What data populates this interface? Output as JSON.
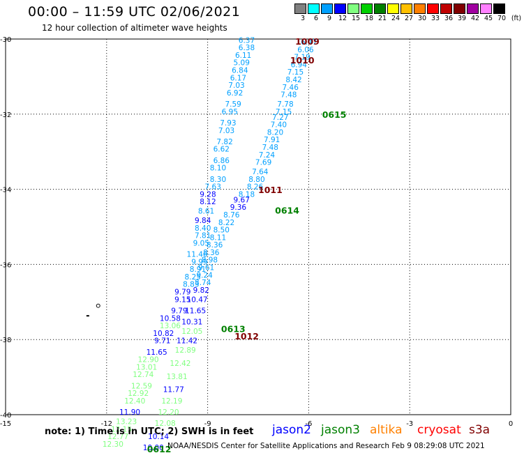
{
  "header": {
    "title": "00:00 – 11:59 UTC 02/06/2021",
    "subtitle": "12 hour collection of altimeter wave heights"
  },
  "legend": {
    "ticks": [
      "3",
      "6",
      "9",
      "12",
      "15",
      "18",
      "21",
      "24",
      "27",
      "30",
      "33",
      "36",
      "39",
      "42",
      "45",
      "70"
    ],
    "unit": "(ft)",
    "colors": [
      "#808080",
      "#00ffff",
      "#00a0ff",
      "#0000ff",
      "#80ff80",
      "#00d000",
      "#008000",
      "#ffff00",
      "#ffc000",
      "#ff8000",
      "#ff0000",
      "#c00000",
      "#800000",
      "#a000a0",
      "#ff80ff",
      "#000000"
    ]
  },
  "footer": {
    "note": "note: 1) Time is in UTC; 2) SWH is in feet",
    "satellites": [
      {
        "name": "jason2",
        "color": "#0000ff"
      },
      {
        "name": "jason3",
        "color": "#008000"
      },
      {
        "name": "altika",
        "color": "#ff8000"
      },
      {
        "name": "cryosat",
        "color": "#ff0000"
      },
      {
        "name": "s3a",
        "color": "#800000"
      }
    ],
    "credit": "NOAA/NESDIS Center for Satellite Applications and Research   Feb  9 08:29:08 UTC 2021"
  },
  "chart_data": {
    "type": "map-annotated-track",
    "xlim": [
      -15,
      0
    ],
    "ylim": [
      -40,
      -30
    ],
    "x_ticks": [
      -15,
      -12,
      -9,
      -6,
      -3,
      0
    ],
    "y_ticks": [
      -30,
      -32,
      -34,
      -36,
      -38,
      -40
    ],
    "grid": true,
    "tracks": [
      {
        "track": "A",
        "labels": [
          {
            "lon": -7.6,
            "lat": -30.1,
            "text": "6.37",
            "color": "#00a0ff"
          },
          {
            "lon": -7.6,
            "lat": -30.3,
            "text": "6.38",
            "color": "#00a0ff"
          },
          {
            "lon": -7.7,
            "lat": -30.5,
            "text": "6.11",
            "color": "#00a0ff"
          },
          {
            "lon": -7.75,
            "lat": -30.7,
            "text": "5.09",
            "color": "#00a0ff"
          },
          {
            "lon": -7.8,
            "lat": -30.9,
            "text": "6.84",
            "color": "#00a0ff"
          },
          {
            "lon": -7.85,
            "lat": -31.1,
            "text": "6.17",
            "color": "#00a0ff"
          },
          {
            "lon": -7.9,
            "lat": -31.3,
            "text": "7.03",
            "color": "#00a0ff"
          },
          {
            "lon": -7.95,
            "lat": -31.5,
            "text": "6.92",
            "color": "#00a0ff"
          },
          {
            "lon": -8.0,
            "lat": -31.8,
            "text": "7.59",
            "color": "#00a0ff"
          },
          {
            "lon": -8.1,
            "lat": -32.0,
            "text": "6.95",
            "color": "#00a0ff"
          },
          {
            "lon": -8.15,
            "lat": -32.3,
            "text": "7.93",
            "color": "#00a0ff"
          },
          {
            "lon": -8.2,
            "lat": -32.5,
            "text": "7.03",
            "color": "#00a0ff"
          },
          {
            "lon": -8.25,
            "lat": -32.8,
            "text": "7.82",
            "color": "#00a0ff"
          },
          {
            "lon": -8.35,
            "lat": -33.0,
            "text": "6.62",
            "color": "#00a0ff"
          },
          {
            "lon": -8.35,
            "lat": -33.3,
            "text": "6.86",
            "color": "#00a0ff"
          },
          {
            "lon": -8.45,
            "lat": -33.5,
            "text": "8.10",
            "color": "#00a0ff"
          },
          {
            "lon": -8.45,
            "lat": -33.8,
            "text": "8.30",
            "color": "#00a0ff"
          },
          {
            "lon": -8.6,
            "lat": -34.0,
            "text": "7.63",
            "color": "#00a0ff"
          },
          {
            "lon": -8.75,
            "lat": -34.2,
            "text": "9.28",
            "color": "#0000ff"
          },
          {
            "lon": -8.75,
            "lat": -34.4,
            "text": "8.12",
            "color": "#0000ff"
          },
          {
            "lon": -8.8,
            "lat": -34.65,
            "text": "8.61",
            "color": "#00a0ff"
          },
          {
            "lon": -8.9,
            "lat": -34.9,
            "text": "9.84",
            "color": "#0000ff"
          },
          {
            "lon": -8.9,
            "lat": -35.1,
            "text": "8.40",
            "color": "#00a0ff"
          },
          {
            "lon": -8.9,
            "lat": -35.3,
            "text": "7.81",
            "color": "#00a0ff"
          },
          {
            "lon": -8.95,
            "lat": -35.5,
            "text": "9.05",
            "color": "#00a0ff"
          },
          {
            "lon": -9.0,
            "lat": -35.8,
            "text": "11.46",
            "color": "#00a0ff"
          },
          {
            "lon": -9.0,
            "lat": -36.0,
            "text": "9.99",
            "color": "#00a0ff"
          },
          {
            "lon": -9.05,
            "lat": -36.2,
            "text": "8.91",
            "color": "#00a0ff"
          },
          {
            "lon": -9.2,
            "lat": -36.4,
            "text": "8.25",
            "color": "#00a0ff"
          },
          {
            "lon": -9.25,
            "lat": -36.6,
            "text": "8.83",
            "color": "#00a0ff"
          },
          {
            "lon": -9.5,
            "lat": -36.8,
            "text": "9.79",
            "color": "#0000ff"
          },
          {
            "lon": -9.5,
            "lat": -37.0,
            "text": "9.15",
            "color": "#0000ff"
          },
          {
            "lon": -9.6,
            "lat": -37.3,
            "text": "9.79",
            "color": "#0000ff"
          },
          {
            "lon": -9.8,
            "lat": -37.5,
            "text": "10.58",
            "color": "#0000ff"
          },
          {
            "lon": -9.8,
            "lat": -37.7,
            "text": "13.06",
            "color": "#80ff80"
          },
          {
            "lon": -10.0,
            "lat": -37.9,
            "text": "10.82",
            "color": "#0000ff"
          },
          {
            "lon": -10.1,
            "lat": -38.1,
            "text": "9.71",
            "color": "#0000ff"
          },
          {
            "lon": -10.2,
            "lat": -38.4,
            "text": "11.65",
            "color": "#0000ff"
          },
          {
            "lon": -10.45,
            "lat": -38.6,
            "text": "12.90",
            "color": "#80ff80"
          },
          {
            "lon": -10.5,
            "lat": -38.8,
            "text": "13.01",
            "color": "#80ff80"
          },
          {
            "lon": -10.6,
            "lat": -39.0,
            "text": "12.74",
            "color": "#80ff80"
          },
          {
            "lon": -10.65,
            "lat": -39.3,
            "text": "12.59",
            "color": "#80ff80"
          },
          {
            "lon": -10.75,
            "lat": -39.5,
            "text": "12.92",
            "color": "#80ff80"
          },
          {
            "lon": -10.85,
            "lat": -39.7,
            "text": "12.40",
            "color": "#80ff80"
          },
          {
            "lon": -11.0,
            "lat": -40.0,
            "text": "11.90",
            "color": "#0000ff"
          },
          {
            "lon": -11.1,
            "lat": -40.25,
            "text": "13.23",
            "color": "#80ff80"
          },
          {
            "lon": -11.25,
            "lat": -40.45,
            "text": "12.15",
            "color": "#80ff80"
          },
          {
            "lon": -11.35,
            "lat": -40.65,
            "text": "12.77",
            "color": "#80ff80"
          },
          {
            "lon": -11.5,
            "lat": -40.85,
            "text": "12.30",
            "color": "#80ff80"
          }
        ]
      },
      {
        "track": "B",
        "labels": [
          {
            "lon": -5.75,
            "lat": -30.15,
            "text": "6.47",
            "color": "#00a0ff"
          },
          {
            "lon": -5.85,
            "lat": -30.35,
            "text": "6.06",
            "color": "#00a0ff"
          },
          {
            "lon": -5.95,
            "lat": -30.55,
            "text": "7.19",
            "color": "#00a0ff"
          },
          {
            "lon": -6.05,
            "lat": -30.75,
            "text": "6.94",
            "color": "#00a0ff"
          },
          {
            "lon": -6.15,
            "lat": -30.95,
            "text": "7.15",
            "color": "#00a0ff"
          },
          {
            "lon": -6.2,
            "lat": -31.15,
            "text": "8.42",
            "color": "#00a0ff"
          },
          {
            "lon": -6.3,
            "lat": -31.35,
            "text": "7.46",
            "color": "#00a0ff"
          },
          {
            "lon": -6.35,
            "lat": -31.55,
            "text": "7.48",
            "color": "#00a0ff"
          },
          {
            "lon": -6.45,
            "lat": -31.8,
            "text": "7.78",
            "color": "#00a0ff"
          },
          {
            "lon": -6.5,
            "lat": -32.0,
            "text": "7.15",
            "color": "#00a0ff"
          },
          {
            "lon": -6.6,
            "lat": -32.15,
            "text": "7.27",
            "color": "#00a0ff"
          },
          {
            "lon": -6.65,
            "lat": -32.35,
            "text": "7.40",
            "color": "#00a0ff"
          },
          {
            "lon": -6.75,
            "lat": -32.55,
            "text": "8.20",
            "color": "#00a0ff"
          },
          {
            "lon": -6.85,
            "lat": -32.75,
            "text": "7.91",
            "color": "#00a0ff"
          },
          {
            "lon": -6.9,
            "lat": -32.95,
            "text": "7.48",
            "color": "#00a0ff"
          },
          {
            "lon": -7.0,
            "lat": -33.15,
            "text": "7.24",
            "color": "#00a0ff"
          },
          {
            "lon": -7.1,
            "lat": -33.35,
            "text": "7.69",
            "color": "#00a0ff"
          },
          {
            "lon": -7.2,
            "lat": -33.6,
            "text": "7.64",
            "color": "#00a0ff"
          },
          {
            "lon": -7.3,
            "lat": -33.8,
            "text": "8.80",
            "color": "#00a0ff"
          },
          {
            "lon": -7.35,
            "lat": -34.0,
            "text": "8.26",
            "color": "#00a0ff"
          },
          {
            "lon": -7.6,
            "lat": -34.2,
            "text": "8.18",
            "color": "#00a0ff"
          },
          {
            "lon": -7.75,
            "lat": -34.35,
            "text": "9.67",
            "color": "#0000ff"
          },
          {
            "lon": -7.85,
            "lat": -34.55,
            "text": "9.36",
            "color": "#0000ff"
          },
          {
            "lon": -8.05,
            "lat": -34.75,
            "text": "8.76",
            "color": "#00a0ff"
          },
          {
            "lon": -8.2,
            "lat": -34.95,
            "text": "8.22",
            "color": "#00a0ff"
          },
          {
            "lon": -8.35,
            "lat": -35.15,
            "text": "8.50",
            "color": "#00a0ff"
          },
          {
            "lon": -8.45,
            "lat": -35.35,
            "text": "8.11",
            "color": "#00a0ff"
          },
          {
            "lon": -8.55,
            "lat": -35.55,
            "text": "8.36",
            "color": "#00a0ff"
          },
          {
            "lon": -8.65,
            "lat": -35.75,
            "text": "8.36",
            "color": "#00a0ff"
          },
          {
            "lon": -8.7,
            "lat": -35.95,
            "text": "8.98",
            "color": "#00a0ff"
          },
          {
            "lon": -8.8,
            "lat": -36.15,
            "text": "9.61",
            "color": "#00a0ff"
          },
          {
            "lon": -8.85,
            "lat": -36.35,
            "text": "9.24",
            "color": "#00a0ff"
          },
          {
            "lon": -8.9,
            "lat": -36.55,
            "text": "8.74",
            "color": "#00a0ff"
          },
          {
            "lon": -8.95,
            "lat": -36.75,
            "text": "9.82",
            "color": "#0000ff"
          },
          {
            "lon": -9.0,
            "lat": -37.0,
            "text": "10.47",
            "color": "#0000ff"
          },
          {
            "lon": -9.05,
            "lat": -37.3,
            "text": "11.65",
            "color": "#0000ff"
          },
          {
            "lon": -9.15,
            "lat": -37.6,
            "text": "10.31",
            "color": "#0000ff"
          },
          {
            "lon": -9.15,
            "lat": -37.85,
            "text": "12.05",
            "color": "#80ff80"
          },
          {
            "lon": -9.3,
            "lat": -38.1,
            "text": "11.42",
            "color": "#0000ff"
          },
          {
            "lon": -9.35,
            "lat": -38.35,
            "text": "12.89",
            "color": "#80ff80"
          },
          {
            "lon": -9.5,
            "lat": -38.7,
            "text": "12.42",
            "color": "#80ff80"
          },
          {
            "lon": -9.6,
            "lat": -39.05,
            "text": "13.81",
            "color": "#80ff80"
          },
          {
            "lon": -9.7,
            "lat": -39.4,
            "text": "11.77",
            "color": "#0000ff"
          },
          {
            "lon": -9.75,
            "lat": -39.7,
            "text": "12.19",
            "color": "#80ff80"
          },
          {
            "lon": -9.85,
            "lat": -40.0,
            "text": "12.20",
            "color": "#80ff80"
          },
          {
            "lon": -9.95,
            "lat": -40.3,
            "text": "12.08",
            "color": "#80ff80"
          },
          {
            "lon": -10.15,
            "lat": -40.65,
            "text": "10.14",
            "color": "#0000ff"
          },
          {
            "lon": -10.3,
            "lat": -40.95,
            "text": "10.00",
            "color": "#0000ff"
          }
        ]
      }
    ],
    "time_labels": [
      {
        "lon": -6.4,
        "lat": -30.15,
        "text": "1009",
        "color": "#800000"
      },
      {
        "lon": -6.55,
        "lat": -30.65,
        "text": "1010",
        "color": "#800000"
      },
      {
        "lon": -5.6,
        "lat": -32.1,
        "text": "0615",
        "color": "#008000"
      },
      {
        "lon": -7.5,
        "lat": -34.1,
        "text": "1011",
        "color": "#800000"
      },
      {
        "lon": -7.0,
        "lat": -34.65,
        "text": "0614",
        "color": "#008000"
      },
      {
        "lon": -8.6,
        "lat": -37.8,
        "text": "0613",
        "color": "#008000"
      },
      {
        "lon": -8.2,
        "lat": -38.0,
        "text": "1012",
        "color": "#800000"
      },
      {
        "lon": -10.8,
        "lat": -41.0,
        "text": "0612",
        "color": "#008000"
      }
    ]
  }
}
